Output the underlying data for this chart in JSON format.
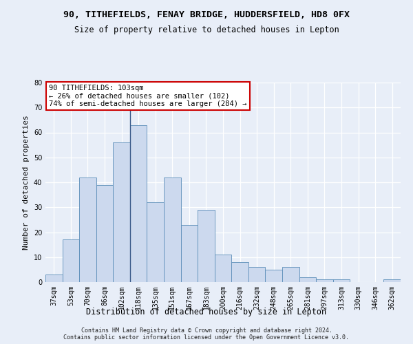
{
  "title1": "90, TITHEFIELDS, FENAY BRIDGE, HUDDERSFIELD, HD8 0FX",
  "title2": "Size of property relative to detached houses in Lepton",
  "xlabel": "Distribution of detached houses by size in Lepton",
  "ylabel": "Number of detached properties",
  "categories": [
    "37sqm",
    "53sqm",
    "70sqm",
    "86sqm",
    "102sqm",
    "118sqm",
    "135sqm",
    "151sqm",
    "167sqm",
    "183sqm",
    "200sqm",
    "216sqm",
    "232sqm",
    "248sqm",
    "265sqm",
    "281sqm",
    "297sqm",
    "313sqm",
    "330sqm",
    "346sqm",
    "362sqm"
  ],
  "values": [
    3,
    17,
    42,
    39,
    56,
    63,
    32,
    42,
    23,
    29,
    11,
    8,
    6,
    5,
    6,
    2,
    1,
    1,
    0,
    0,
    1
  ],
  "bar_color": "#ccd9ee",
  "bar_edge_color": "#5b8db8",
  "background_color": "#e8eef8",
  "grid_color": "#ffffff",
  "vline_x": 4.5,
  "vline_color": "#3a5a8a",
  "annotation_line1": "90 TITHEFIELDS: 103sqm",
  "annotation_line2": "← 26% of detached houses are smaller (102)",
  "annotation_line3": "74% of semi-detached houses are larger (284) →",
  "annotation_box_facecolor": "#ffffff",
  "annotation_box_edgecolor": "#cc0000",
  "ylim": [
    0,
    80
  ],
  "yticks": [
    0,
    10,
    20,
    30,
    40,
    50,
    60,
    70,
    80
  ],
  "footnote": "Contains HM Land Registry data © Crown copyright and database right 2024.\nContains public sector information licensed under the Open Government Licence v3.0.",
  "title1_fontsize": 9.5,
  "title2_fontsize": 8.5,
  "xlabel_fontsize": 8.5,
  "ylabel_fontsize": 8,
  "tick_fontsize": 7,
  "annotation_fontsize": 7.5,
  "footnote_fontsize": 6
}
